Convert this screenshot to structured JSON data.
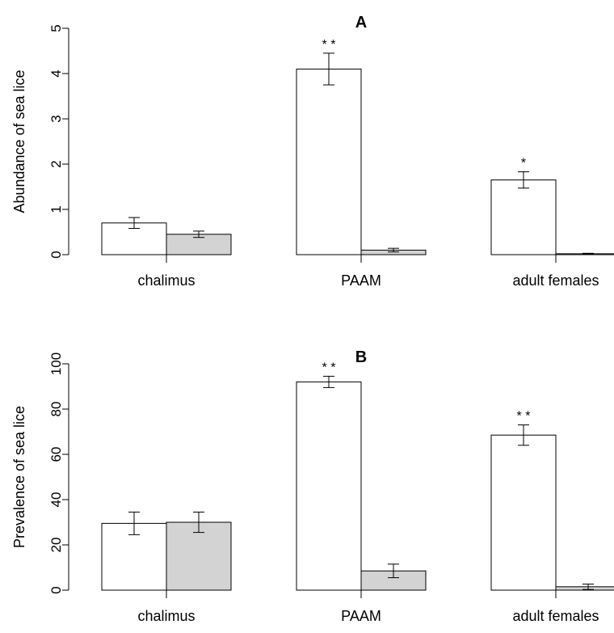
{
  "chart_data": [
    {
      "type": "bar",
      "title": "A",
      "ylabel": "Abundance of sea lice",
      "xlabel": "",
      "categories": [
        "chalimus",
        "PAAM",
        "adult females"
      ],
      "ylim": [
        0,
        5
      ],
      "yticks": [
        "0",
        "1",
        "2",
        "3",
        "4",
        "5"
      ],
      "series": [
        {
          "values": [
            0.7,
            4.1,
            1.65
          ],
          "errors": [
            0.12,
            0.35,
            0.18
          ],
          "color": "#ffffff"
        },
        {
          "values": [
            0.45,
            0.1,
            0.02
          ],
          "errors": [
            0.07,
            0.04,
            0.01
          ],
          "color": "#d3d3d3"
        }
      ],
      "significance": [
        "",
        "* *",
        "*"
      ]
    },
    {
      "type": "bar",
      "title": "B",
      "ylabel": "Prevalence of sea lice",
      "xlabel": "",
      "categories": [
        "chalimus",
        "PAAM",
        "adult females"
      ],
      "ylim": [
        0,
        100
      ],
      "yticks": [
        "0",
        "20",
        "40",
        "60",
        "80",
        "100"
      ],
      "series": [
        {
          "values": [
            29.5,
            92.0,
            68.5
          ],
          "errors": [
            5.0,
            2.5,
            4.5
          ],
          "color": "#ffffff"
        },
        {
          "values": [
            30.0,
            8.5,
            1.5
          ],
          "errors": [
            4.5,
            3.0,
            1.2
          ],
          "color": "#d3d3d3"
        }
      ],
      "significance": [
        "",
        "* *",
        "* *"
      ]
    }
  ]
}
